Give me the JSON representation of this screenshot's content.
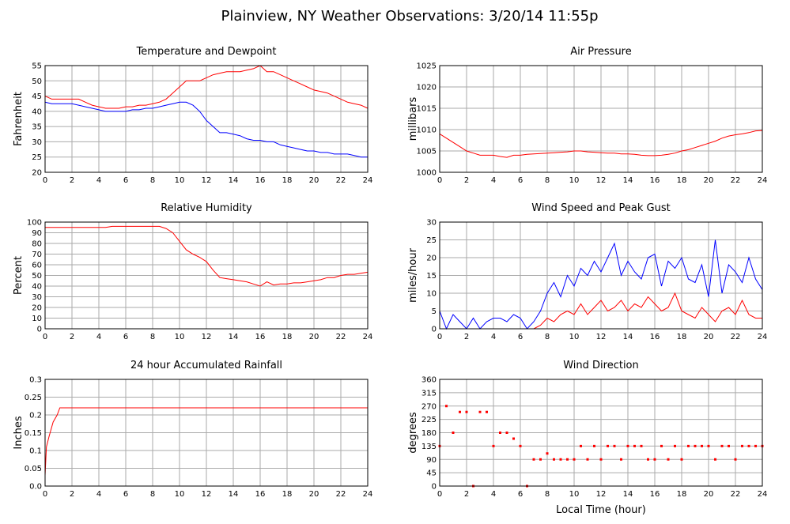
{
  "title": "Plainview, NY Weather Observations: 3/20/14 11:55p",
  "chart_data": [
    {
      "type": "line",
      "title": "Temperature and Dewpoint",
      "ylabel": "Fahrenheit",
      "x": [
        0,
        0.5,
        1,
        1.5,
        2,
        2.5,
        3,
        3.5,
        4,
        4.5,
        5,
        5.5,
        6,
        6.5,
        7,
        7.5,
        8,
        8.5,
        9,
        9.5,
        10,
        10.5,
        11,
        11.5,
        12,
        12.5,
        13,
        13.5,
        14,
        14.5,
        15,
        15.5,
        16,
        16.5,
        17,
        17.5,
        18,
        18.5,
        19,
        19.5,
        20,
        20.5,
        21,
        21.5,
        22,
        22.5,
        23,
        23.5,
        24
      ],
      "series": [
        {
          "color": "#ff0000",
          "values": [
            45,
            44,
            44,
            44,
            44,
            44,
            43,
            42,
            41.5,
            41,
            41,
            41,
            41.5,
            41.5,
            42,
            42,
            42.5,
            43,
            44,
            46,
            48,
            50,
            50,
            50,
            51,
            52,
            52.5,
            53,
            53,
            53,
            53.5,
            54,
            55,
            53,
            53,
            52,
            51,
            50,
            49,
            48,
            47,
            46.5,
            46,
            45,
            44,
            43,
            42.5,
            42,
            41
          ]
        },
        {
          "color": "#0000ff",
          "values": [
            43,
            42.5,
            42.5,
            42.5,
            42.5,
            42,
            41.5,
            41,
            40.5,
            40,
            40,
            40,
            40,
            40.5,
            40.5,
            41,
            41,
            41.5,
            42,
            42.5,
            43,
            43,
            42,
            40,
            37,
            35,
            33,
            33,
            32.5,
            32,
            31,
            30.5,
            30.5,
            30,
            30,
            29,
            28.5,
            28,
            27.5,
            27,
            27,
            26.5,
            26.5,
            26,
            26,
            26,
            25.5,
            25,
            25
          ]
        }
      ],
      "xlim": [
        0,
        24
      ],
      "xticks": [
        0,
        2,
        4,
        6,
        8,
        10,
        12,
        14,
        16,
        18,
        20,
        22,
        24
      ],
      "ylim": [
        20,
        55
      ],
      "yticks": [
        20,
        25,
        30,
        35,
        40,
        45,
        50,
        55
      ],
      "grid": true
    },
    {
      "type": "line",
      "title": "Air Pressure",
      "ylabel": "millibars",
      "x": [
        0,
        0.5,
        1,
        1.5,
        2,
        2.5,
        3,
        3.5,
        4,
        4.5,
        5,
        5.5,
        6,
        6.5,
        7,
        7.5,
        8,
        8.5,
        9,
        9.5,
        10,
        10.5,
        11,
        11.5,
        12,
        12.5,
        13,
        13.5,
        14,
        14.5,
        15,
        15.5,
        16,
        16.5,
        17,
        17.5,
        18,
        18.5,
        19,
        19.5,
        20,
        20.5,
        21,
        21.5,
        22,
        22.5,
        23,
        23.5,
        24
      ],
      "series": [
        {
          "color": "#ff0000",
          "values": [
            1009,
            1008,
            1007,
            1006,
            1005,
            1004.5,
            1004,
            1004,
            1004,
            1003.7,
            1003.5,
            1004,
            1004,
            1004.2,
            1004.3,
            1004.4,
            1004.5,
            1004.6,
            1004.7,
            1004.8,
            1005,
            1005,
            1004.8,
            1004.7,
            1004.6,
            1004.5,
            1004.5,
            1004.3,
            1004.3,
            1004.2,
            1004,
            1003.9,
            1003.9,
            1004,
            1004.2,
            1004.5,
            1005,
            1005.3,
            1005.8,
            1006.3,
            1006.8,
            1007.3,
            1008,
            1008.5,
            1008.8,
            1009,
            1009.3,
            1009.7,
            1009.8
          ]
        }
      ],
      "xlim": [
        0,
        24
      ],
      "xticks": [
        0,
        2,
        4,
        6,
        8,
        10,
        12,
        14,
        16,
        18,
        20,
        22,
        24
      ],
      "ylim": [
        1000,
        1025
      ],
      "yticks": [
        1000,
        1005,
        1010,
        1015,
        1020,
        1025
      ],
      "grid": true
    },
    {
      "type": "line",
      "title": "Relative Humidity",
      "ylabel": "Percent",
      "x": [
        0,
        0.5,
        1,
        1.5,
        2,
        2.5,
        3,
        3.5,
        4,
        4.5,
        5,
        5.5,
        6,
        6.5,
        7,
        7.5,
        8,
        8.5,
        9,
        9.5,
        10,
        10.5,
        11,
        11.5,
        12,
        12.5,
        13,
        13.5,
        14,
        14.5,
        15,
        15.5,
        16,
        16.5,
        17,
        17.5,
        18,
        18.5,
        19,
        19.5,
        20,
        20.5,
        21,
        21.5,
        22,
        22.5,
        23,
        23.5,
        24
      ],
      "series": [
        {
          "color": "#ff0000",
          "values": [
            95,
            95,
            95,
            95,
            95,
            95,
            95,
            95,
            95,
            95,
            96,
            96,
            96,
            96,
            96,
            96,
            96,
            96,
            94,
            90,
            82,
            74,
            70,
            67,
            63,
            55,
            48,
            47,
            46,
            45,
            44,
            42,
            40,
            44,
            41,
            42,
            42,
            43,
            43,
            44,
            45,
            46,
            48,
            48,
            50,
            51,
            51,
            52,
            53
          ]
        }
      ],
      "xlim": [
        0,
        24
      ],
      "xticks": [
        0,
        2,
        4,
        6,
        8,
        10,
        12,
        14,
        16,
        18,
        20,
        22,
        24
      ],
      "ylim": [
        0,
        100
      ],
      "yticks": [
        0,
        10,
        20,
        30,
        40,
        50,
        60,
        70,
        80,
        90,
        100
      ],
      "grid": true
    },
    {
      "type": "line",
      "title": "Wind Speed and Peak Gust",
      "ylabel": "miles/hour",
      "x": [
        0,
        0.5,
        1,
        1.5,
        2,
        2.5,
        3,
        3.5,
        4,
        4.5,
        5,
        5.5,
        6,
        6.5,
        7,
        7.5,
        8,
        8.5,
        9,
        9.5,
        10,
        10.5,
        11,
        11.5,
        12,
        12.5,
        13,
        13.5,
        14,
        14.5,
        15,
        15.5,
        16,
        16.5,
        17,
        17.5,
        18,
        18.5,
        19,
        19.5,
        20,
        20.5,
        21,
        21.5,
        22,
        22.5,
        23,
        23.5,
        24
      ],
      "series": [
        {
          "color": "#0000ff",
          "values": [
            5,
            0,
            4,
            2,
            0,
            3,
            0,
            2,
            3,
            3,
            2,
            4,
            3,
            0,
            2,
            5,
            10,
            13,
            9,
            15,
            12,
            17,
            15,
            19,
            16,
            20,
            24,
            15,
            19,
            16,
            14,
            20,
            21,
            12,
            19,
            17,
            20,
            14,
            13,
            18,
            9,
            25,
            10,
            18,
            16,
            13,
            20,
            14,
            11
          ]
        },
        {
          "color": "#ff0000",
          "values": [
            0,
            0,
            0,
            0,
            0,
            0,
            0,
            0,
            0,
            0,
            0,
            0,
            0,
            0,
            0,
            1,
            3,
            2,
            4,
            5,
            4,
            7,
            4,
            6,
            8,
            5,
            6,
            8,
            5,
            7,
            6,
            9,
            7,
            5,
            6,
            10,
            5,
            4,
            3,
            6,
            4,
            2,
            5,
            6,
            4,
            8,
            4,
            3,
            3
          ]
        }
      ],
      "xlim": [
        0,
        24
      ],
      "xticks": [
        0,
        2,
        4,
        6,
        8,
        10,
        12,
        14,
        16,
        18,
        20,
        22,
        24
      ],
      "ylim": [
        0,
        30
      ],
      "yticks": [
        0,
        5,
        10,
        15,
        20,
        25,
        30
      ],
      "grid": true
    },
    {
      "type": "line",
      "title": "24 hour Accumulated Rainfall",
      "ylabel": "Inches",
      "x": [
        0,
        0.1,
        0.3,
        0.6,
        0.9,
        1.1,
        24
      ],
      "series": [
        {
          "color": "#ff0000",
          "values": [
            0.03,
            0.11,
            0.14,
            0.18,
            0.2,
            0.22,
            0.22
          ]
        }
      ],
      "xlim": [
        0,
        24
      ],
      "xticks": [
        0,
        2,
        4,
        6,
        8,
        10,
        12,
        14,
        16,
        18,
        20,
        22,
        24
      ],
      "ylim": [
        0,
        0.3
      ],
      "yticks": [
        {
          "value": 0,
          "label": "0.0"
        },
        0.05,
        0.1,
        0.15,
        0.2,
        0.25,
        0.3
      ],
      "grid": true
    },
    {
      "type": "scatter",
      "title": "Wind Direction",
      "ylabel": "degrees",
      "xlabel": "Local Time (hour)",
      "x": [
        0,
        0.5,
        1,
        1.5,
        2,
        2.5,
        3,
        3.5,
        4,
        4.5,
        5,
        5.5,
        6,
        6.5,
        7,
        7.5,
        8,
        8.5,
        9,
        9.5,
        10,
        10.5,
        11,
        11.5,
        12,
        12.5,
        13,
        13.5,
        14,
        14.5,
        15,
        15.5,
        16,
        16.5,
        17,
        17.5,
        18,
        18.5,
        19,
        19.5,
        20,
        20.5,
        21,
        21.5,
        22,
        22.5,
        23,
        23.5,
        24
      ],
      "series": [
        {
          "color": "#ff0000",
          "values": [
            135,
            270,
            180,
            250,
            250,
            0,
            250,
            250,
            135,
            180,
            180,
            160,
            135,
            0,
            90,
            90,
            110,
            90,
            90,
            90,
            90,
            135,
            90,
            135,
            90,
            135,
            135,
            90,
            135,
            135,
            135,
            90,
            90,
            135,
            90,
            135,
            90,
            135,
            135,
            135,
            135,
            90,
            135,
            135,
            90,
            135,
            135,
            135,
            135
          ]
        }
      ],
      "xlim": [
        0,
        24
      ],
      "xticks": [
        0,
        2,
        4,
        6,
        8,
        10,
        12,
        14,
        16,
        18,
        20,
        22,
        24
      ],
      "ylim": [
        0,
        360
      ],
      "yticks": [
        0,
        45,
        90,
        135,
        180,
        225,
        270,
        315,
        360
      ],
      "grid": true
    }
  ]
}
